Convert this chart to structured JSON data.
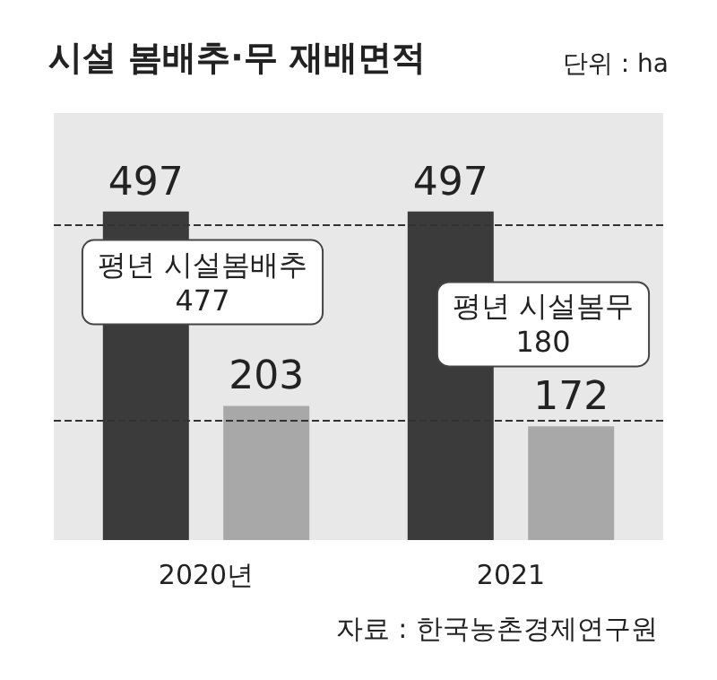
{
  "chart_data": {
    "type": "bar",
    "title": "시설 봄배추·무 재배면적",
    "subtitle": "단위 : ha",
    "categories": [
      "2020년",
      "2021"
    ],
    "series": [
      {
        "color": "#3b3b3b",
        "values": [
          497,
          497
        ]
      },
      {
        "color": "#a8a8a8",
        "values": [
          203,
          172
        ]
      }
    ],
    "data_labels": true,
    "tick_labels": "x",
    "ref_lines": [
      {
        "axis": "y",
        "value": 477,
        "label": "평년 시설봄배추\n477",
        "line_style": "dashed",
        "color": "#333333"
      },
      {
        "axis": "y",
        "value": 180,
        "label": "평년 시설봄무\n180",
        "line_style": "dashed",
        "color": "#333333"
      }
    ],
    "annotations": [
      "자료 : 한국농촌경제연구원"
    ]
  }
}
